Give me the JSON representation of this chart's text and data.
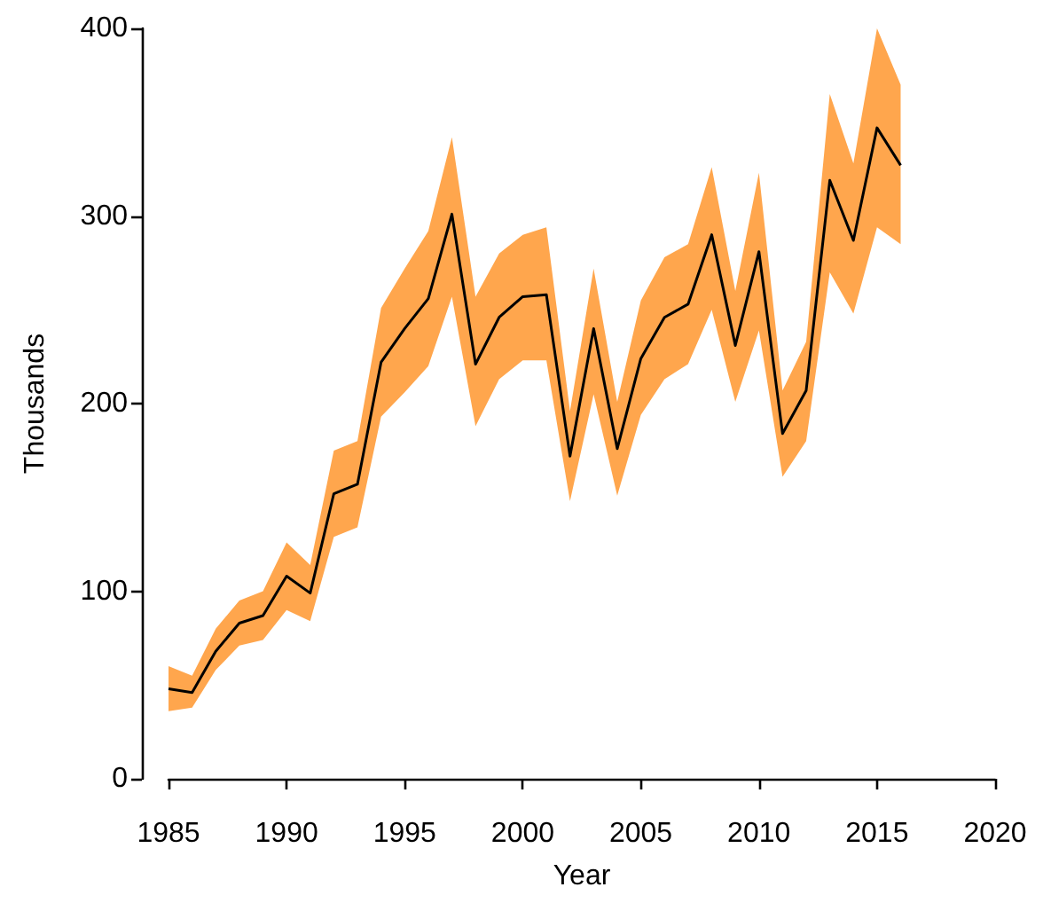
{
  "chart_data": {
    "type": "line",
    "xlabel": "Year",
    "ylabel": "Thousands",
    "x": [
      1985,
      1986,
      1987,
      1988,
      1989,
      1990,
      1991,
      1992,
      1993,
      1994,
      1995,
      1996,
      1997,
      1998,
      1999,
      2000,
      2001,
      2002,
      2003,
      2004,
      2005,
      2006,
      2007,
      2008,
      2009,
      2010,
      2011,
      2012,
      2013,
      2014,
      2015,
      2016
    ],
    "series": [
      {
        "color": "#000000",
        "values": [
          48,
          46,
          68,
          83,
          87,
          108,
          99,
          152,
          157,
          222,
          240,
          256,
          301,
          221,
          246,
          257,
          258,
          172,
          240,
          176,
          224,
          246,
          253,
          290,
          231,
          281,
          184,
          207,
          319,
          287,
          347,
          327
        ],
        "lower": [
          36,
          38,
          58,
          71,
          74,
          90,
          84,
          129,
          134,
          193,
          206,
          220,
          257,
          188,
          213,
          223,
          223,
          148,
          205,
          151,
          194,
          213,
          221,
          250,
          201,
          239,
          161,
          180,
          270,
          248,
          294,
          285
        ],
        "upper": [
          60,
          55,
          80,
          95,
          100,
          126,
          114,
          175,
          180,
          251,
          272,
          292,
          342,
          257,
          280,
          290,
          294,
          196,
          272,
          201,
          255,
          278,
          285,
          326,
          260,
          323,
          207,
          233,
          365,
          328,
          400,
          370
        ]
      }
    ],
    "xlim": [
      1985,
      2020
    ],
    "xticks": [
      1985,
      1990,
      1995,
      2000,
      2005,
      2010,
      2015,
      2020
    ],
    "ylim": [
      0,
      400
    ],
    "yticks": [
      0,
      100,
      200,
      300,
      400
    ],
    "grid": false,
    "marker": "none",
    "line_style": "solid"
  }
}
